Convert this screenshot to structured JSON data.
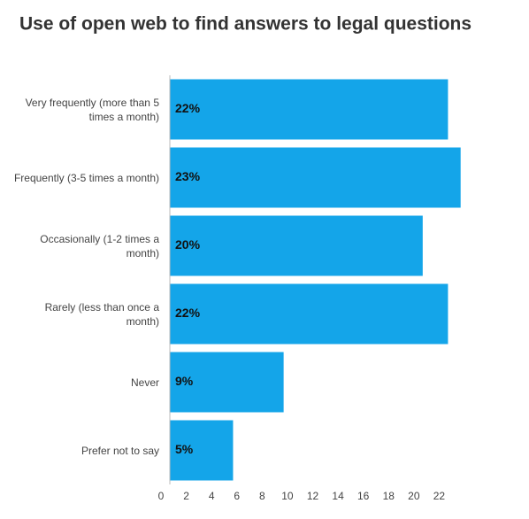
{
  "chart_data": {
    "type": "barh",
    "title": "Use of open web to find answers to legal questions",
    "categories": [
      "Very frequently (more than 5 times a month)",
      "Frequently (3-5 times a month)",
      "Occasionally (1-2 times a month)",
      "Rarely (less than once a month)",
      "Never",
      "Prefer not to say"
    ],
    "values": [
      22,
      23,
      20,
      22,
      9,
      5
    ],
    "value_labels": [
      "22%",
      "23%",
      "20%",
      "22%",
      "9%",
      "5%"
    ],
    "color": "#14a5e9",
    "xlim": [
      0,
      24
    ],
    "xticks": [
      0,
      2,
      4,
      6,
      8,
      10,
      12,
      14,
      16,
      18,
      20,
      22
    ]
  }
}
